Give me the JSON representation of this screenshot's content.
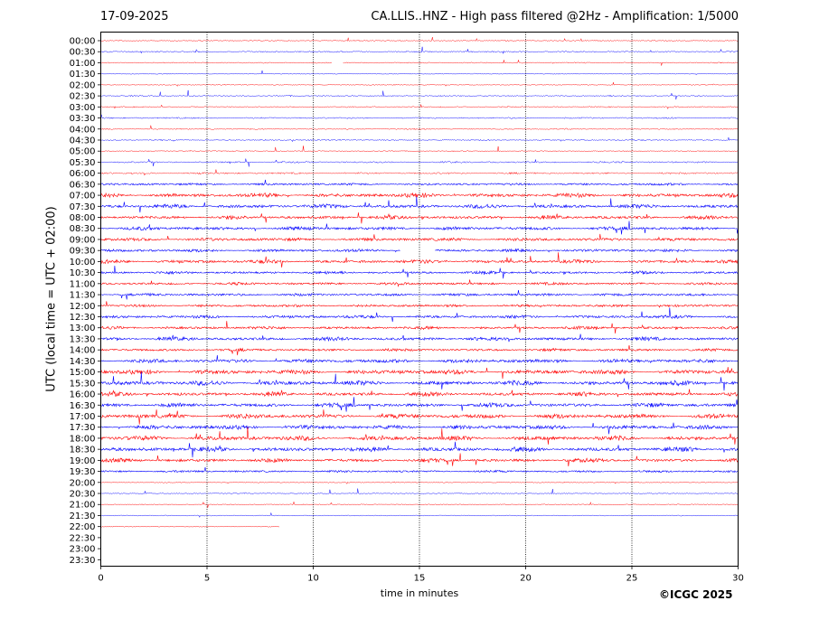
{
  "header": {
    "date": "17-09-2025",
    "title": "CA.LLIS..HNZ - High pass filtered @2Hz - Amplification: 1/5000"
  },
  "footer": {
    "copyright": "©ICGC 2025"
  },
  "chart_data": {
    "type": "line",
    "xlabel": "time in minutes",
    "ylabel": "UTC (local time = UTC + 02:00)",
    "xlim": [
      0,
      30
    ],
    "x_ticks": [
      0,
      5,
      10,
      15,
      20,
      25,
      30
    ],
    "x_tick_labels": [
      "0",
      "5",
      "10",
      "15",
      "20",
      "25",
      "30"
    ],
    "grid": "vertical dotted lines at x ticks",
    "row_labels": [
      "00:00",
      "00:30",
      "01:00",
      "01:30",
      "02:00",
      "02:30",
      "03:00",
      "03:30",
      "04:00",
      "04:30",
      "05:00",
      "05:30",
      "06:00",
      "06:30",
      "07:00",
      "07:30",
      "08:00",
      "08:30",
      "09:00",
      "09:30",
      "10:00",
      "10:30",
      "11:00",
      "11:30",
      "12:00",
      "12:30",
      "13:00",
      "13:30",
      "14:00",
      "14:30",
      "15:00",
      "15:30",
      "16:00",
      "16:30",
      "17:00",
      "17:30",
      "18:00",
      "18:30",
      "19:00",
      "19:30",
      "20:00",
      "20:30",
      "21:00",
      "21:30",
      "22:00",
      "22:30",
      "23:00",
      "23:30"
    ],
    "trace_colors": [
      "#ff0000",
      "#0000ff"
    ],
    "activity_level": [
      0.1,
      0.2,
      0.1,
      0.05,
      0.05,
      0.15,
      0.15,
      0.2,
      0.15,
      0.15,
      0.1,
      0.25,
      0.3,
      0.4,
      0.85,
      0.8,
      0.7,
      0.7,
      0.65,
      0.55,
      0.7,
      0.5,
      0.45,
      0.5,
      0.45,
      0.6,
      0.55,
      0.7,
      0.5,
      0.8,
      1.0,
      1.0,
      0.8,
      0.85,
      1.0,
      0.9,
      1.0,
      0.95,
      0.75,
      0.35,
      0.05,
      0.05,
      0.05,
      0.05,
      0.05,
      0,
      0,
      0
    ],
    "trace_end_minute": [
      30,
      30,
      30,
      30,
      30,
      30,
      30,
      30,
      30,
      30,
      30,
      30,
      30,
      30,
      30,
      30,
      30,
      30,
      30,
      30,
      30,
      30,
      30,
      30,
      30,
      30,
      30,
      30,
      30,
      30,
      30,
      30,
      30,
      30,
      30,
      30,
      30,
      30,
      30,
      30,
      30,
      30,
      30,
      30,
      8.4,
      0,
      0,
      0
    ],
    "gap_minutes": [
      {
        "row": "09:30",
        "from": 14.1,
        "to": 15.7
      },
      {
        "row": "01:00",
        "from": 10.9,
        "to": 11.4
      }
    ]
  }
}
